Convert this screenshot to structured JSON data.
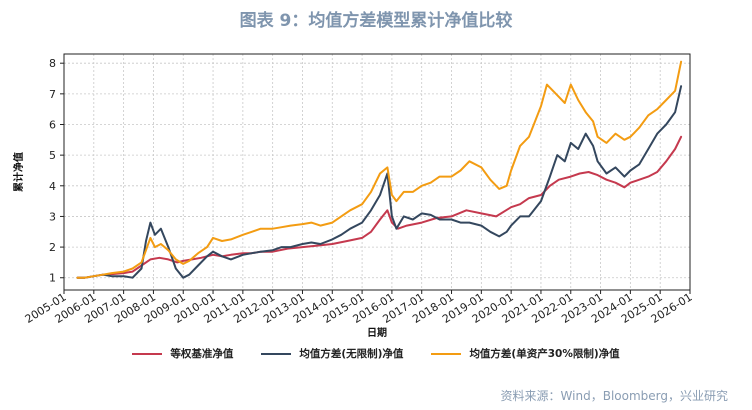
{
  "title": "图表 9：均值方差模型累计净值比较",
  "source": "资料来源：Wind，Bloomberg，兴业研究",
  "colors": {
    "s1": "#c5394e",
    "s2": "#34475e",
    "s3": "#f39c12",
    "grid": "#c8c8c8"
  },
  "chart_data": {
    "type": "line",
    "xlabel": "日期",
    "ylabel": "累计净值",
    "xlim": [
      2005.0,
      2026.0
    ],
    "ylim": [
      0.6,
      8.3
    ],
    "yticks": [
      1,
      2,
      3,
      4,
      5,
      6,
      7,
      8
    ],
    "ytick_labels": [
      "1",
      "2",
      "3",
      "4",
      "5",
      "6",
      "7",
      "8"
    ],
    "xticks": [
      2005,
      2006,
      2007,
      2008,
      2009,
      2010,
      2011,
      2012,
      2013,
      2014,
      2015,
      2016,
      2017,
      2018,
      2019,
      2020,
      2021,
      2022,
      2023,
      2024,
      2025,
      2026
    ],
    "xtick_labels": [
      "2005-01",
      "2006-01",
      "2007-01",
      "2008-01",
      "2009-01",
      "2010-01",
      "2011-01",
      "2012-01",
      "2013-01",
      "2014-01",
      "2015-01",
      "2016-01",
      "2017-01",
      "2018-01",
      "2019-01",
      "2020-01",
      "2021-01",
      "2022-01",
      "2023-01",
      "2024-01",
      "2025-01",
      "2026-01"
    ],
    "grid": true,
    "legend_position": "bottom",
    "series": [
      {
        "name": "等权基准净值",
        "color": "#c5394e",
        "x": [
          2005.45,
          2005.7,
          2006.0,
          2006.3,
          2006.6,
          2007.0,
          2007.3,
          2007.6,
          2007.9,
          2008.2,
          2008.5,
          2008.8,
          2009.0,
          2009.3,
          2009.6,
          2010.0,
          2010.3,
          2010.6,
          2011.0,
          2011.3,
          2011.6,
          2012.0,
          2012.5,
          2013.0,
          2013.5,
          2014.0,
          2014.5,
          2015.0,
          2015.3,
          2015.6,
          2015.85,
          2016.0,
          2016.2,
          2016.5,
          2017.0,
          2017.5,
          2018.0,
          2018.5,
          2019.0,
          2019.5,
          2020.0,
          2020.3,
          2020.6,
          2021.0,
          2021.3,
          2021.6,
          2022.0,
          2022.3,
          2022.6,
          2022.9,
          2023.2,
          2023.5,
          2023.8,
          2024.0,
          2024.3,
          2024.6,
          2024.9,
          2025.2,
          2025.5,
          2025.7
        ],
        "y": [
          1.0,
          1.0,
          1.05,
          1.1,
          1.12,
          1.15,
          1.2,
          1.4,
          1.6,
          1.65,
          1.6,
          1.5,
          1.55,
          1.6,
          1.65,
          1.75,
          1.7,
          1.75,
          1.8,
          1.8,
          1.85,
          1.85,
          1.95,
          2.0,
          2.05,
          2.1,
          2.2,
          2.3,
          2.5,
          2.9,
          3.2,
          2.8,
          2.6,
          2.7,
          2.8,
          2.95,
          3.0,
          3.2,
          3.1,
          3.0,
          3.3,
          3.4,
          3.6,
          3.7,
          4.0,
          4.2,
          4.3,
          4.4,
          4.45,
          4.35,
          4.2,
          4.1,
          3.95,
          4.1,
          4.2,
          4.3,
          4.45,
          4.8,
          5.2,
          5.6
        ]
      },
      {
        "name": "均值方差(无限制)净值",
        "color": "#34475e",
        "x": [
          2005.45,
          2005.7,
          2006.0,
          2006.3,
          2006.6,
          2007.0,
          2007.3,
          2007.6,
          2007.75,
          2007.9,
          2008.05,
          2008.25,
          2008.5,
          2008.75,
          2009.0,
          2009.2,
          2009.5,
          2009.8,
          2010.0,
          2010.3,
          2010.6,
          2011.0,
          2011.3,
          2011.6,
          2012.0,
          2012.3,
          2012.6,
          2013.0,
          2013.3,
          2013.6,
          2014.0,
          2014.3,
          2014.6,
          2015.0,
          2015.3,
          2015.6,
          2015.85,
          2016.0,
          2016.15,
          2016.4,
          2016.7,
          2017.0,
          2017.3,
          2017.6,
          2018.0,
          2018.3,
          2018.6,
          2019.0,
          2019.3,
          2019.6,
          2019.85,
          2020.0,
          2020.3,
          2020.6,
          2021.0,
          2021.3,
          2021.55,
          2021.8,
          2022.0,
          2022.25,
          2022.5,
          2022.75,
          2022.9,
          2023.2,
          2023.5,
          2023.8,
          2024.0,
          2024.3,
          2024.6,
          2024.9,
          2025.2,
          2025.5,
          2025.7
        ],
        "y": [
          1.0,
          1.0,
          1.05,
          1.1,
          1.05,
          1.05,
          1.0,
          1.3,
          2.2,
          2.8,
          2.4,
          2.6,
          2.0,
          1.3,
          1.0,
          1.1,
          1.4,
          1.7,
          1.85,
          1.7,
          1.6,
          1.75,
          1.8,
          1.85,
          1.9,
          2.0,
          2.0,
          2.1,
          2.15,
          2.1,
          2.25,
          2.4,
          2.6,
          2.8,
          3.2,
          3.7,
          4.4,
          3.0,
          2.6,
          3.0,
          2.9,
          3.1,
          3.05,
          2.9,
          2.9,
          2.8,
          2.8,
          2.7,
          2.5,
          2.35,
          2.5,
          2.7,
          3.0,
          3.0,
          3.5,
          4.3,
          5.0,
          4.8,
          5.4,
          5.2,
          5.7,
          5.3,
          4.8,
          4.4,
          4.6,
          4.3,
          4.5,
          4.7,
          5.2,
          5.7,
          6.0,
          6.4,
          7.25
        ]
      },
      {
        "name": "均值方差(单资产30%限制)净值",
        "color": "#f39c12",
        "x": [
          2005.45,
          2005.7,
          2006.0,
          2006.3,
          2006.6,
          2007.0,
          2007.3,
          2007.6,
          2007.75,
          2007.9,
          2008.05,
          2008.25,
          2008.5,
          2008.75,
          2009.0,
          2009.2,
          2009.5,
          2009.8,
          2010.0,
          2010.3,
          2010.6,
          2011.0,
          2011.3,
          2011.6,
          2012.0,
          2012.3,
          2012.6,
          2013.0,
          2013.3,
          2013.6,
          2014.0,
          2014.3,
          2014.6,
          2015.0,
          2015.3,
          2015.6,
          2015.85,
          2016.0,
          2016.15,
          2016.4,
          2016.7,
          2017.0,
          2017.3,
          2017.6,
          2018.0,
          2018.3,
          2018.6,
          2019.0,
          2019.3,
          2019.6,
          2019.85,
          2020.0,
          2020.3,
          2020.6,
          2021.0,
          2021.2,
          2021.5,
          2021.8,
          2022.0,
          2022.25,
          2022.5,
          2022.75,
          2022.9,
          2023.2,
          2023.5,
          2023.8,
          2024.0,
          2024.3,
          2024.6,
          2024.9,
          2025.2,
          2025.5,
          2025.7
        ],
        "y": [
          1.0,
          1.0,
          1.05,
          1.1,
          1.15,
          1.2,
          1.3,
          1.5,
          1.9,
          2.3,
          2.0,
          2.1,
          1.9,
          1.6,
          1.45,
          1.55,
          1.8,
          2.0,
          2.3,
          2.2,
          2.25,
          2.4,
          2.5,
          2.6,
          2.6,
          2.65,
          2.7,
          2.75,
          2.8,
          2.7,
          2.8,
          3.0,
          3.2,
          3.4,
          3.8,
          4.4,
          4.6,
          3.7,
          3.5,
          3.8,
          3.8,
          4.0,
          4.1,
          4.3,
          4.3,
          4.5,
          4.8,
          4.6,
          4.2,
          3.9,
          4.0,
          4.5,
          5.3,
          5.6,
          6.6,
          7.3,
          7.0,
          6.7,
          7.3,
          6.8,
          6.4,
          6.1,
          5.6,
          5.4,
          5.7,
          5.5,
          5.6,
          5.9,
          6.3,
          6.5,
          6.8,
          7.1,
          8.05
        ]
      }
    ]
  }
}
